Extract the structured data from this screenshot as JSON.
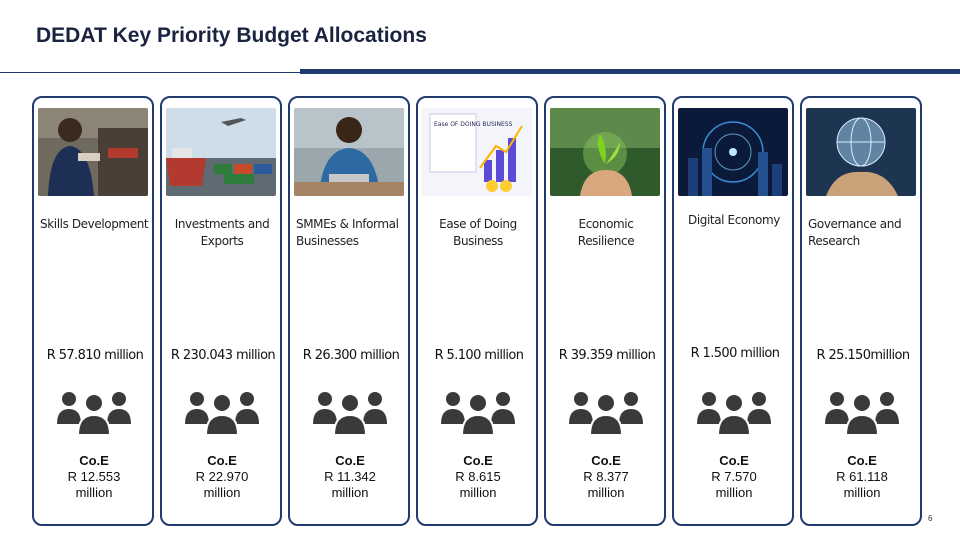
{
  "title": "DEDAT Key Priority Budget Allocations",
  "page_number": "6",
  "colors": {
    "accent": "#1f3a6e",
    "title": "#1a2340"
  },
  "cards": [
    {
      "label": "Skills Development",
      "budget": "R 57.810 million",
      "coe_heading": "Co.E",
      "coe_line1": "R 12.553",
      "coe_line2": "million",
      "image": "factory-worker-photo"
    },
    {
      "label": "Investments and Exports",
      "budget": "R 230.043 million",
      "coe_heading": "Co.E",
      "coe_line1": "R 22.970",
      "coe_line2": "million",
      "image": "cargo-port-photo"
    },
    {
      "label": "SMMEs & Informal Businesses",
      "budget": "R 26.300 million",
      "coe_heading": "Co.E",
      "coe_line1": "R 11.342",
      "coe_line2": "million",
      "image": "business-owner-photo"
    },
    {
      "label": "Ease of Doing Business",
      "budget": "R 5.100 million",
      "coe_heading": "Co.E",
      "coe_line1": "R 8.615",
      "coe_line2": "million",
      "image": "ease-of-doing-business-graphic",
      "image_text": "Ease OF DOING BUSINESS"
    },
    {
      "label": "Economic Resilience",
      "budget": "R 39.359 million",
      "coe_heading": "Co.E",
      "coe_line1": "R 8.377",
      "coe_line2": "million",
      "image": "plant-in-hands-photo"
    },
    {
      "label": "Digital Economy",
      "budget": "R 1.500 million",
      "coe_heading": "Co.E",
      "coe_line1": "R 7.570",
      "coe_line2": "million",
      "image": "digital-city-photo"
    },
    {
      "label": "Governance and Research",
      "budget": "R 25.150million",
      "coe_heading": "Co.E",
      "coe_line1": "R 61.118",
      "coe_line2": "million",
      "image": "digital-globe-hand-photo"
    }
  ]
}
